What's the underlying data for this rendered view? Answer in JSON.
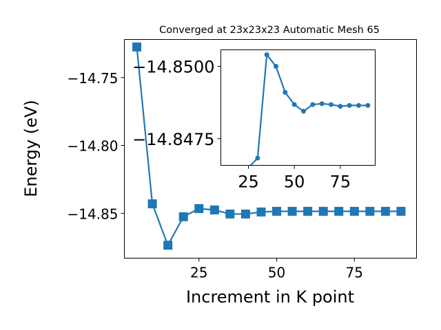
{
  "chart_data": [
    {
      "type": "line",
      "title": "Converged at 23x23x23 Automatic Mesh 65",
      "xlabel": "Increment in K point",
      "ylabel": "Energy (eV)",
      "xlim": [
        1,
        95
      ],
      "ylim": [
        -14.883,
        -14.722
      ],
      "xticks": [
        25,
        50,
        75
      ],
      "xtick_labels": [
        "25",
        "50",
        "75"
      ],
      "yticks": [
        -14.75,
        -14.8,
        -14.85
      ],
      "ytick_labels": [
        "−14.75",
        "−14.80",
        "−14.85"
      ],
      "grid": false,
      "marker": "square",
      "color": "#1f77b4",
      "series": [
        {
          "x": [
            5,
            10,
            15,
            20,
            25,
            30,
            35,
            40,
            45,
            50,
            55,
            60,
            65,
            70,
            75,
            80,
            85,
            90
          ],
          "y": [
            -14.7275,
            -14.843,
            -14.8735,
            -14.8525,
            -14.8465,
            -14.8475,
            -14.8505,
            -14.8505,
            -14.849,
            -14.8485,
            -14.8485,
            -14.8485,
            -14.8485,
            -14.8485,
            -14.8485,
            -14.8485,
            -14.8485,
            -14.8485
          ]
        }
      ]
    },
    {
      "type": "line",
      "title": "",
      "xlabel": "",
      "ylabel": "",
      "xlim": [
        10,
        94
      ],
      "ylim": [
        -14.84658,
        -14.85057
      ],
      "y_axis_inverted_note": "values ascend toward more negative at top",
      "xticks": [
        25,
        50,
        75
      ],
      "xtick_labels": [
        "25",
        "50",
        "75"
      ],
      "yticks": [
        -14.85,
        -14.8475
      ],
      "ytick_labels": [
        "−14.8500",
        "−14.8475"
      ],
      "grid": false,
      "marker": "circle",
      "color": "#1f77b4",
      "series": [
        {
          "x": [
            30,
            35,
            40,
            45,
            50,
            55,
            60,
            65,
            70,
            75,
            80,
            85,
            90
          ],
          "y": [
            -14.84683,
            -14.8504,
            -14.85,
            -14.8491,
            -14.84868,
            -14.84845,
            -14.84868,
            -14.84871,
            -14.84868,
            -14.84862,
            -14.84865,
            -14.84865,
            -14.84865
          ]
        }
      ]
    }
  ]
}
